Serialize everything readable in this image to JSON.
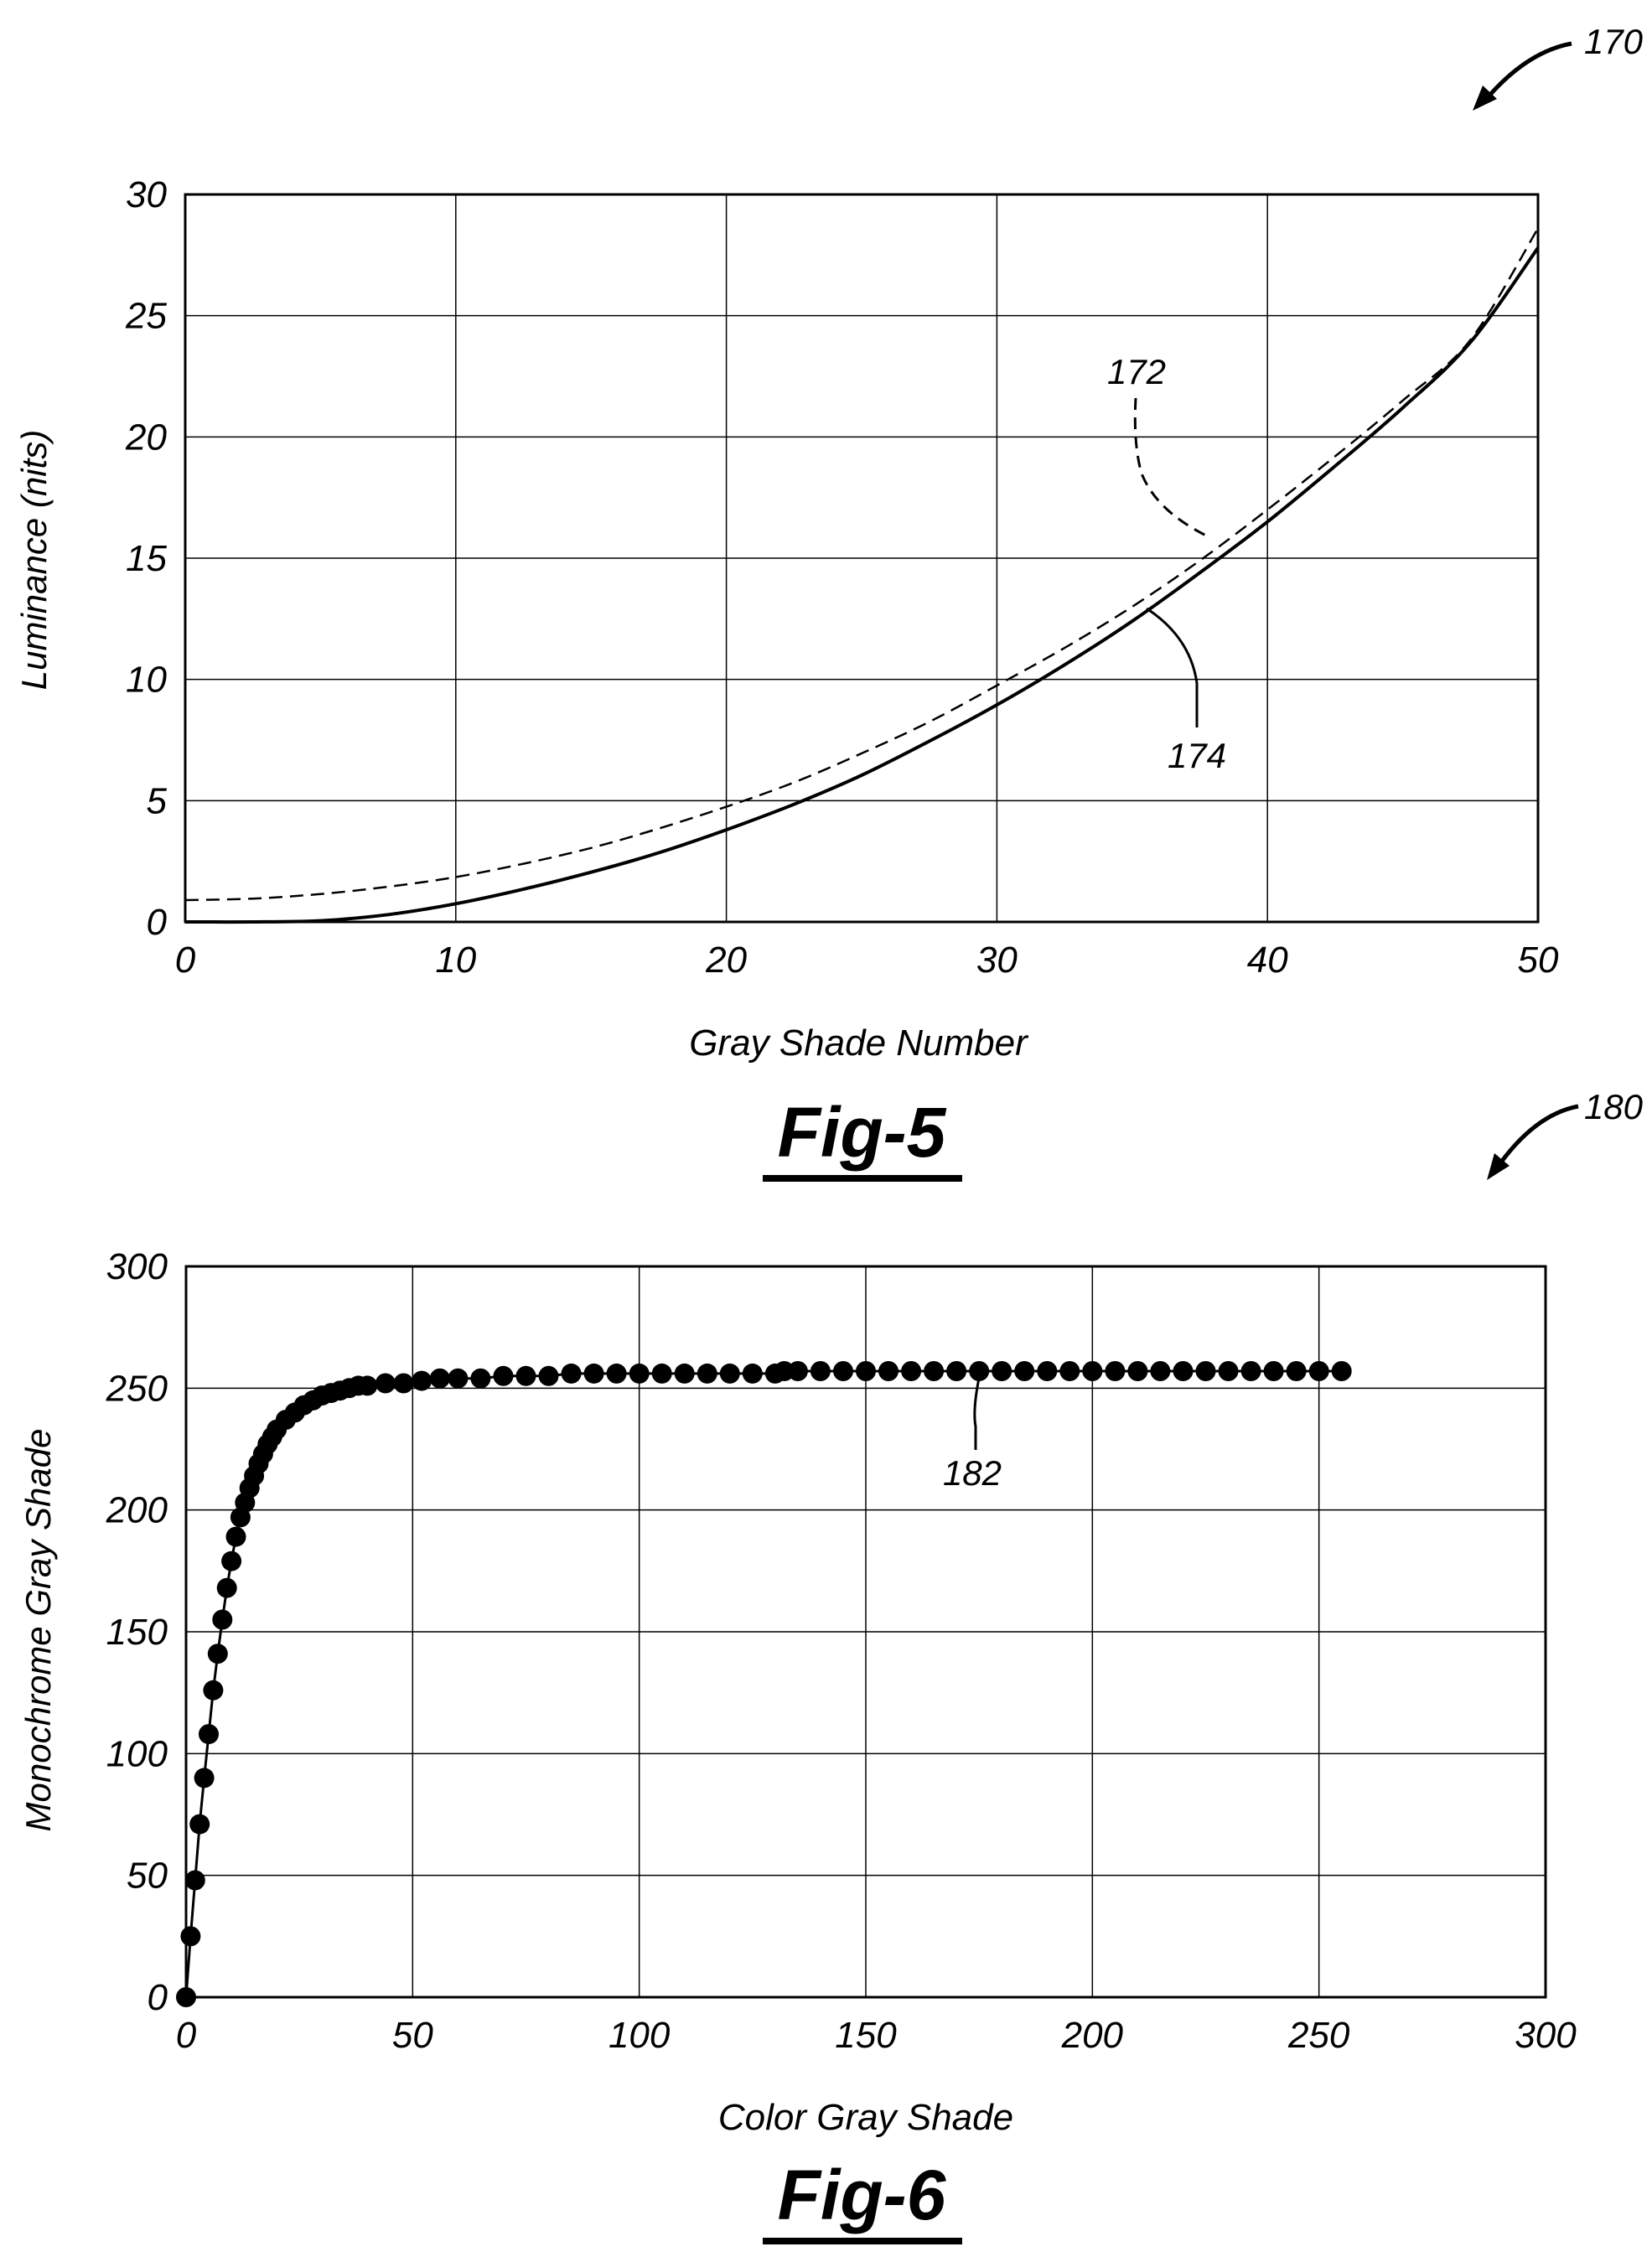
{
  "references": {
    "fig5_ref": "170",
    "fig6_ref": "180",
    "curve_dashed_ref": "172",
    "curve_solid_ref": "174",
    "scatter_ref": "182"
  },
  "figure_labels": {
    "fig5": "Fig-5",
    "fig6": "Fig-6"
  },
  "chart_data": [
    {
      "type": "line",
      "xlabel": "Gray Shade Number",
      "ylabel": "Luminance (nits)",
      "xlim": [
        0,
        50
      ],
      "ylim": [
        0,
        30
      ],
      "xticks": [
        0,
        10,
        20,
        30,
        40,
        50
      ],
      "yticks": [
        0,
        5,
        10,
        15,
        20,
        25,
        30
      ],
      "grid": true,
      "legend": "none",
      "series": [
        {
          "name": "172",
          "style": "dashed",
          "x": [
            0,
            2.5,
            5,
            7.5,
            10,
            12.5,
            15,
            17.5,
            20,
            22.5,
            25,
            27.5,
            30,
            32.5,
            35,
            37.5,
            40,
            42.5,
            45,
            47.5,
            50
          ],
          "y": [
            0.9,
            0.96,
            1.15,
            1.45,
            1.85,
            2.4,
            3.05,
            3.85,
            4.75,
            5.75,
            6.95,
            8.25,
            9.75,
            11.3,
            13.0,
            14.9,
            17.0,
            19.2,
            21.5,
            24.0,
            28.6
          ]
        },
        {
          "name": "174",
          "style": "solid",
          "x": [
            0,
            2.5,
            5,
            7.5,
            10,
            12.5,
            15,
            17.5,
            20,
            22.5,
            25,
            27.5,
            30,
            32.5,
            35,
            37.5,
            40,
            42.5,
            45,
            47.5,
            50
          ],
          "y": [
            0.0,
            0.0,
            0.05,
            0.3,
            0.75,
            1.35,
            2.05,
            2.85,
            3.8,
            4.85,
            6.05,
            7.45,
            8.95,
            10.6,
            12.4,
            14.4,
            16.5,
            18.8,
            21.2,
            23.9,
            27.8
          ]
        }
      ]
    },
    {
      "type": "scatter",
      "xlabel": "Color Gray Shade",
      "ylabel": "Monochrome Gray Shade",
      "xlim": [
        0,
        300
      ],
      "ylim": [
        0,
        300
      ],
      "xticks": [
        0,
        50,
        100,
        150,
        200,
        250,
        300
      ],
      "yticks": [
        0,
        50,
        100,
        150,
        200,
        250,
        300
      ],
      "grid": true,
      "legend": "none",
      "series": [
        {
          "name": "182",
          "x": [
            0,
            1,
            2,
            3,
            4,
            5,
            6,
            7,
            8,
            9,
            10,
            11,
            12,
            13,
            14,
            15,
            16,
            17,
            18,
            19,
            20,
            22,
            24,
            26,
            28,
            30,
            32,
            34,
            36,
            38,
            40,
            44,
            48,
            52,
            56,
            60,
            65,
            70,
            75,
            80,
            85,
            90,
            95,
            100,
            105,
            110,
            115,
            120,
            125,
            130,
            132,
            135,
            140,
            145,
            150,
            155,
            160,
            165,
            170,
            175,
            180,
            185,
            190,
            195,
            200,
            205,
            210,
            215,
            220,
            225,
            230,
            235,
            240,
            245,
            250,
            255
          ],
          "y": [
            0,
            25,
            48,
            71,
            90,
            108,
            126,
            141,
            155,
            168,
            179,
            189,
            197,
            203,
            209,
            214,
            219,
            223,
            227,
            230,
            233,
            237,
            240,
            243,
            245,
            247,
            248,
            249,
            250,
            251,
            251,
            252,
            252,
            253,
            254,
            254,
            254,
            255,
            255,
            255,
            256,
            256,
            256,
            256,
            256,
            256,
            256,
            256,
            256,
            256,
            257,
            257,
            257,
            257,
            257,
            257,
            257,
            257,
            257,
            257,
            257,
            257,
            257,
            257,
            257,
            257,
            257,
            257,
            257,
            257,
            257,
            257,
            257,
            257,
            257,
            257
          ]
        }
      ]
    }
  ]
}
